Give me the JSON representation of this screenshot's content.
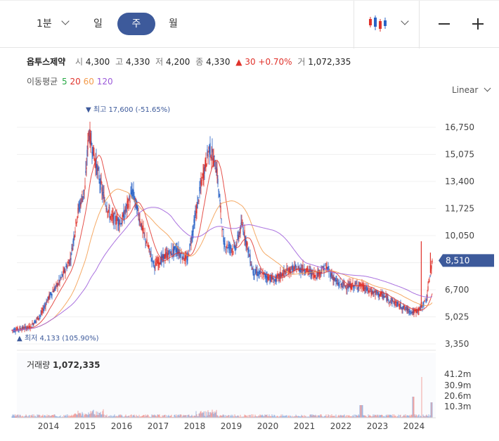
{
  "toolbar": {
    "interval_label": "1분",
    "tabs": [
      "일",
      "주",
      "월"
    ],
    "active_tab": "주",
    "chart_type_icon": "candlestick-icon",
    "zoom_out_label": "—",
    "zoom_in_label": "+"
  },
  "stock": {
    "name": "옵투스제약",
    "open_label": "시",
    "open": "4,300",
    "high_label": "고",
    "high": "4,330",
    "low_label": "저",
    "low": "4,200",
    "close_label": "종",
    "close": "4,330",
    "change": "▲ 30 +0.70%",
    "volume_label": "거",
    "volume": "1,072,335"
  },
  "moving_average": {
    "label": "이동평균",
    "periods": [
      "5",
      "20",
      "60",
      "120"
    ],
    "colors": [
      "#27a945",
      "#e0322b",
      "#f39b4b",
      "#9b59d9"
    ]
  },
  "scale_label": "Linear",
  "volume_panel": {
    "label": "거래량",
    "value": "1,072,335"
  },
  "colors": {
    "up": "#e0322b",
    "down": "#2b63c6",
    "accent": "#3d5a9b"
  },
  "chart_data": {
    "type": "candlestick",
    "price_axis_ticks": [
      "16,750",
      "15,075",
      "13,400",
      "11,725",
      "10,050",
      "8,375",
      "6,700",
      "5,025",
      "3,350"
    ],
    "price_axis_values": [
      16750,
      15075,
      13400,
      11725,
      10050,
      8375,
      6700,
      5025,
      3350
    ],
    "ylim": [
      3350,
      18000
    ],
    "current_price_label": "8,510",
    "current_price": 8510,
    "max_annotation": "▼ 최고 17,600 (-51.65%)",
    "min_annotation": "▲ 최저 4,133 (105.90%)",
    "x_ticks": [
      "2014",
      "2015",
      "2016",
      "2017",
      "2018",
      "2019",
      "2020",
      "2021",
      "2022",
      "2023",
      "2024"
    ],
    "volume_axis_ticks": [
      "41.2m",
      "30.9m",
      "20.6m",
      "10.3m"
    ],
    "price_path": [
      [
        2013.0,
        4200
      ],
      [
        2013.5,
        4400
      ],
      [
        2013.8,
        5200
      ],
      [
        2014.0,
        6200
      ],
      [
        2014.3,
        7200
      ],
      [
        2014.6,
        8600
      ],
      [
        2014.8,
        11500
      ],
      [
        2015.0,
        13000
      ],
      [
        2015.1,
        16500
      ],
      [
        2015.3,
        14500
      ],
      [
        2015.5,
        12500
      ],
      [
        2015.7,
        11200
      ],
      [
        2016.0,
        10900
      ],
      [
        2016.3,
        12800
      ],
      [
        2016.6,
        10200
      ],
      [
        2016.9,
        8200
      ],
      [
        2017.2,
        8800
      ],
      [
        2017.5,
        9200
      ],
      [
        2017.8,
        8500
      ],
      [
        2018.0,
        11000
      ],
      [
        2018.2,
        13500
      ],
      [
        2018.4,
        15500
      ],
      [
        2018.6,
        14200
      ],
      [
        2018.8,
        9500
      ],
      [
        2019.1,
        9200
      ],
      [
        2019.3,
        10800
      ],
      [
        2019.6,
        7800
      ],
      [
        2019.9,
        7600
      ],
      [
        2020.2,
        7300
      ],
      [
        2020.4,
        7700
      ],
      [
        2020.7,
        8000
      ],
      [
        2021.0,
        8000
      ],
      [
        2021.3,
        7600
      ],
      [
        2021.6,
        8100
      ],
      [
        2021.9,
        7100
      ],
      [
        2022.2,
        6900
      ],
      [
        2022.5,
        7000
      ],
      [
        2022.8,
        6600
      ],
      [
        2023.1,
        6400
      ],
      [
        2023.4,
        6000
      ],
      [
        2023.7,
        5600
      ],
      [
        2024.0,
        5300
      ],
      [
        2024.2,
        5600
      ],
      [
        2024.35,
        6200
      ],
      [
        2024.5,
        8510
      ]
    ],
    "spikes": [
      [
        2024.2,
        9700
      ],
      [
        2024.45,
        9000
      ]
    ]
  }
}
